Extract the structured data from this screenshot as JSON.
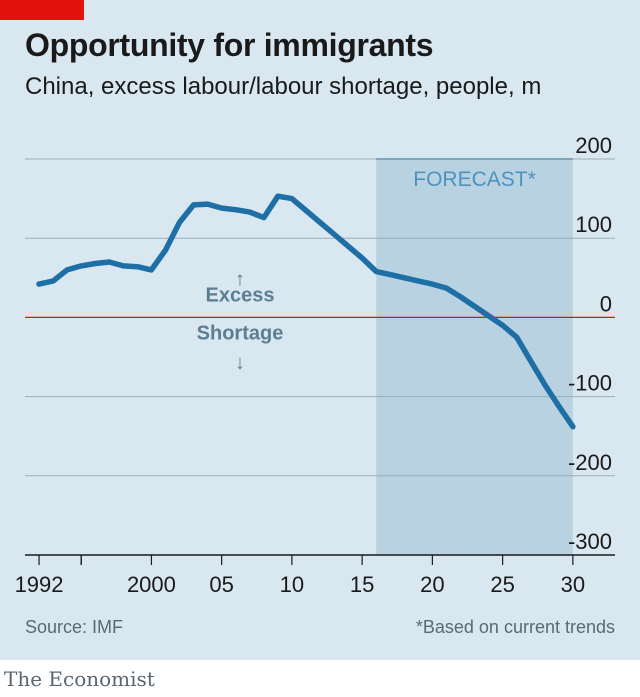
{
  "header": {
    "title": "Opportunity for immigrants",
    "subtitle": "China, excess labour/labour shortage, people, m",
    "accent_color": "#e3120b"
  },
  "chart_data": {
    "type": "line",
    "title": "Opportunity for immigrants",
    "subtitle": "China, excess labour/labour shortage, people, m",
    "x_tick_labels": [
      "1992",
      "2000",
      "05",
      "10",
      "15",
      "20",
      "25",
      "30"
    ],
    "x_tick_values": [
      1992,
      2000,
      2005,
      2010,
      2015,
      2020,
      2025,
      2030
    ],
    "xlim": [
      1991,
      2033
    ],
    "y_tick_labels": [
      "200",
      "100",
      "0",
      "-100",
      "-200",
      "-300"
    ],
    "y_tick_values": [
      200,
      100,
      0,
      -100,
      -200,
      -300
    ],
    "ylim": [
      -300,
      200
    ],
    "forecast": {
      "label": "FORECAST*",
      "start": 2016,
      "end": 2030
    },
    "annotations": {
      "excess": "Excess",
      "shortage": "Shortage"
    },
    "series": [
      {
        "name": "Excess labour / labour shortage",
        "color": "#1d6fa5",
        "x": [
          1992,
          1993,
          1994,
          1995,
          1996,
          1997,
          1998,
          1999,
          2000,
          2001,
          2002,
          2003,
          2004,
          2005,
          2006,
          2007,
          2008,
          2009,
          2010,
          2011,
          2012,
          2013,
          2014,
          2015,
          2016,
          2017,
          2018,
          2019,
          2020,
          2021,
          2022,
          2023,
          2024,
          2025,
          2026,
          2027,
          2028,
          2029,
          2030
        ],
        "values": [
          42,
          46,
          60,
          65,
          68,
          70,
          65,
          64,
          60,
          85,
          120,
          142,
          143,
          138,
          136,
          133,
          126,
          153,
          150,
          135,
          120,
          105,
          90,
          75,
          58,
          54,
          50,
          46,
          42,
          37,
          26,
          14,
          2,
          -10,
          -25,
          -55,
          -85,
          -112,
          -138
        ]
      }
    ]
  },
  "footer": {
    "source": "Source: IMF",
    "note": "*Based on current trends",
    "brand": "The Economist"
  }
}
